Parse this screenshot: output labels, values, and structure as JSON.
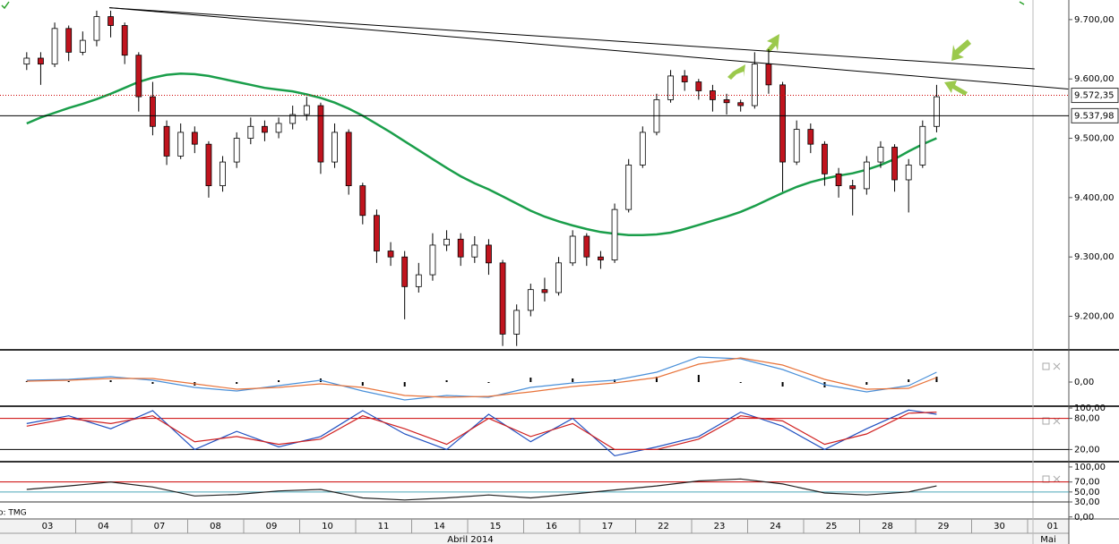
{
  "chart_data": [
    {
      "type": "candlestick",
      "categories": [
        "03",
        "04",
        "07",
        "08",
        "09",
        "10",
        "11",
        "14",
        "15",
        "16",
        "17",
        "22",
        "23",
        "24",
        "25",
        "28",
        "29",
        "30",
        "01"
      ],
      "months": [
        "Abril 2014",
        "Mai"
      ],
      "source": "o: TMG",
      "open": [
        9625,
        9635,
        9625,
        9685,
        9645,
        9665,
        9705,
        9690,
        9640,
        9570,
        9520,
        9470,
        9510,
        9490,
        9420,
        9460,
        9500,
        9520,
        9510,
        9525,
        9540,
        9555,
        9460,
        9510,
        9420,
        9370,
        9310,
        9300,
        9250,
        9270,
        9320,
        9330,
        9300,
        9320,
        9290,
        9170,
        9210,
        9245,
        9240,
        9290,
        9335,
        9300,
        9295,
        9380,
        9455,
        9510,
        9565,
        9605,
        9595,
        9580,
        9565,
        9560,
        9555,
        9625,
        9590,
        9460,
        9515,
        9490,
        9440,
        9420,
        9415,
        9460,
        9485,
        9430,
        9455,
        9520
      ],
      "high": [
        9645,
        9645,
        9695,
        9690,
        9680,
        9715,
        9715,
        9695,
        9645,
        9595,
        9530,
        9525,
        9520,
        9495,
        9470,
        9510,
        9535,
        9530,
        9535,
        9555,
        9570,
        9560,
        9525,
        9515,
        9425,
        9380,
        9325,
        9310,
        9290,
        9340,
        9345,
        9340,
        9335,
        9330,
        9295,
        9220,
        9255,
        9265,
        9300,
        9345,
        9340,
        9310,
        9390,
        9465,
        9520,
        9575,
        9615,
        9615,
        9600,
        9590,
        9575,
        9565,
        9645,
        9650,
        9595,
        9530,
        9525,
        9495,
        9450,
        9430,
        9470,
        9495,
        9490,
        9465,
        9530,
        9590
      ],
      "low": [
        9615,
        9590,
        9620,
        9630,
        9640,
        9655,
        9670,
        9625,
        9545,
        9505,
        9455,
        9465,
        9475,
        9400,
        9410,
        9450,
        9490,
        9495,
        9500,
        9515,
        9530,
        9440,
        9450,
        9405,
        9355,
        9290,
        9285,
        9195,
        9240,
        9260,
        9310,
        9285,
        9290,
        9270,
        9150,
        9150,
        9200,
        9225,
        9235,
        9285,
        9285,
        9280,
        9290,
        9375,
        9450,
        9505,
        9560,
        9580,
        9565,
        9545,
        9540,
        9545,
        9550,
        9575,
        9410,
        9455,
        9475,
        9420,
        9400,
        9370,
        9405,
        9450,
        9410,
        9375,
        9450,
        9510
      ],
      "close": [
        9635,
        9625,
        9685,
        9645,
        9665,
        9705,
        9690,
        9640,
        9570,
        9520,
        9470,
        9510,
        9490,
        9420,
        9460,
        9500,
        9520,
        9510,
        9525,
        9540,
        9555,
        9460,
        9510,
        9420,
        9370,
        9310,
        9300,
        9250,
        9270,
        9320,
        9330,
        9300,
        9320,
        9290,
        9170,
        9210,
        9245,
        9240,
        9290,
        9335,
        9300,
        9295,
        9380,
        9455,
        9510,
        9565,
        9605,
        9595,
        9580,
        9565,
        9560,
        9555,
        9625,
        9590,
        9460,
        9515,
        9490,
        9440,
        9420,
        9415,
        9460,
        9485,
        9430,
        9455,
        9520,
        9570
      ],
      "up_color": "#ffffff",
      "down_color": "#c0141e",
      "moving_average": {
        "color": "#1a9e4a",
        "values": [
          9525,
          9535,
          9543,
          9551,
          9558,
          9566,
          9575,
          9585,
          9595,
          9602,
          9607,
          9609,
          9608,
          9605,
          9600,
          9595,
          9590,
          9585,
          9582,
          9579,
          9574,
          9568,
          9560,
          9550,
          9538,
          9524,
          9510,
          9495,
          9480,
          9465,
          9450,
          9436,
          9424,
          9414,
          9402,
          9390,
          9378,
          9368,
          9360,
          9353,
          9347,
          9342,
          9339,
          9337,
          9337,
          9338,
          9341,
          9347,
          9354,
          9361,
          9368,
          9376,
          9386,
          9397,
          9408,
          9418,
          9426,
          9432,
          9437,
          9441,
          9447,
          9455,
          9465,
          9478,
          9490,
          9500
        ]
      },
      "trendlines": [
        {
          "from": [
            5.9,
            9720
          ],
          "to": [
            72,
            9617
          ],
          "color": "#000000"
        },
        {
          "from": [
            5.9,
            9720
          ],
          "to": [
            74.4,
            9583
          ],
          "color": "#000000"
        }
      ],
      "levels": [
        {
          "value": 9572.35,
          "label": "9.572,35",
          "color": "#cc0000"
        },
        {
          "value": 9537.98,
          "label": "9.537,98",
          "color": "#000000"
        }
      ],
      "ylim": [
        9145,
        9733
      ],
      "yticks": [
        {
          "value": 9200,
          "label": "9.200,00"
        },
        {
          "value": 9300,
          "label": "9.300,00"
        },
        {
          "value": 9400,
          "label": "9.400,00"
        },
        {
          "value": 9500,
          "label": "9.500,00"
        },
        {
          "value": 9600,
          "label": "9.600,00"
        },
        {
          "value": 9700,
          "label": "9.700,00"
        }
      ]
    },
    {
      "type": "macd",
      "x": [
        0,
        3,
        6,
        9,
        12,
        15,
        18,
        21,
        24,
        27,
        30,
        33,
        36,
        39,
        42,
        45,
        48,
        51,
        54,
        57,
        60,
        63,
        65
      ],
      "series": [
        {
          "color": "#4a90d9",
          "values": [
            4,
            6,
            12,
            4,
            -12,
            -20,
            -8,
            4,
            -20,
            -40,
            -30,
            -34,
            -12,
            -2,
            4,
            22,
            56,
            52,
            28,
            -6,
            -22,
            -8,
            22
          ]
        },
        {
          "color": "#e8733a",
          "values": [
            2,
            4,
            8,
            8,
            -4,
            -16,
            -12,
            -4,
            -12,
            -30,
            -34,
            -32,
            -22,
            -10,
            -2,
            10,
            40,
            54,
            38,
            6,
            -16,
            -14,
            10
          ]
        }
      ],
      "histogram": {
        "color": "#000000",
        "values": [
          2,
          2,
          4,
          -4,
          -8,
          -4,
          4,
          8,
          -8,
          -10,
          4,
          -2,
          10,
          8,
          6,
          12,
          16,
          -2,
          -10,
          -12,
          -6,
          6,
          12
        ]
      },
      "ylim": [
        -50,
        68
      ],
      "yticks": [
        {
          "value": 0,
          "label": "0,00"
        }
      ]
    },
    {
      "type": "line",
      "x": [
        0,
        3,
        6,
        9,
        12,
        15,
        18,
        21,
        24,
        27,
        30,
        33,
        36,
        39,
        42,
        45,
        48,
        51,
        54,
        57,
        60,
        63,
        65
      ],
      "series": [
        {
          "color": "#2050c0",
          "values": [
            70,
            85,
            60,
            95,
            20,
            55,
            25,
            45,
            95,
            50,
            20,
            88,
            35,
            80,
            8,
            25,
            45,
            92,
            65,
            20,
            60,
            96,
            88
          ]
        },
        {
          "color": "#d02020",
          "values": [
            65,
            80,
            70,
            85,
            35,
            45,
            30,
            40,
            85,
            60,
            30,
            80,
            45,
            70,
            20,
            20,
            40,
            85,
            75,
            30,
            50,
            90,
            92
          ]
        }
      ],
      "levels": [
        {
          "value": 80,
          "color": "#cc0000"
        },
        {
          "value": 20,
          "color": "#000000"
        }
      ],
      "ylim": [
        0,
        100
      ],
      "yticks": [
        {
          "value": 100,
          "label": "100,00"
        },
        {
          "value": 80,
          "label": "80,00"
        },
        {
          "value": 20,
          "label": "20,00"
        }
      ]
    },
    {
      "type": "line",
      "x": [
        0,
        3,
        6,
        9,
        12,
        15,
        18,
        21,
        24,
        27,
        30,
        33,
        36,
        39,
        42,
        45,
        48,
        51,
        54,
        57,
        60,
        63,
        65
      ],
      "series": [
        {
          "color": "#222222",
          "values": [
            55,
            62,
            70,
            60,
            42,
            45,
            52,
            55,
            38,
            34,
            38,
            44,
            38,
            46,
            54,
            62,
            72,
            76,
            66,
            48,
            44,
            50,
            62
          ]
        }
      ],
      "levels": [
        {
          "value": 70,
          "color": "#cc0000"
        },
        {
          "value": 50,
          "color": "#4aa8b8"
        },
        {
          "value": 30,
          "color": "#333333"
        }
      ],
      "ylim": [
        -4,
        107
      ],
      "yticks": [
        {
          "value": 100,
          "label": "100,00"
        },
        {
          "value": 70,
          "label": "70,00"
        },
        {
          "value": 50,
          "label": "50,00"
        },
        {
          "value": 30,
          "label": "30,00"
        },
        {
          "value": 0,
          "label": "0,00"
        }
      ]
    }
  ]
}
